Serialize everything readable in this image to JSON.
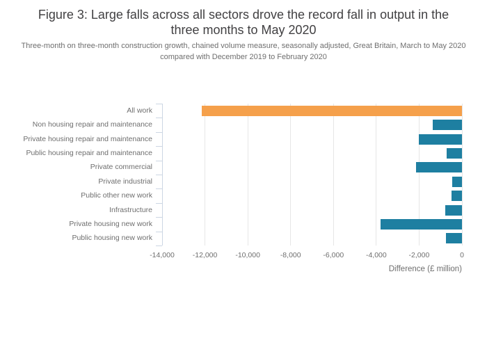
{
  "figure": {
    "title": "Figure 3: Large falls across all sectors drove the record fall in output in the three months to May 2020",
    "subtitle": "Three-month on three-month construction growth, chained volume measure, seasonally adjusted, Great Britain, March to May 2020 compared with December 2019 to February 2020"
  },
  "chart_data": {
    "type": "bar",
    "orientation": "horizontal",
    "title": "Figure 3: Large falls across all sectors drove the record fall in output in the three months to May 2020",
    "subtitle": "Three-month on three-month construction growth, chained volume measure, seasonally adjusted, Great Britain, March to May 2020 compared with December 2019 to February 2020",
    "categories": [
      "All work",
      "Non housing repair and maintenance",
      "Private housing repair and maintenance",
      "Public housing repair and maintenance",
      "Private commercial",
      "Private industrial",
      "Public other new work",
      "Infrastructure",
      "Private housing new work",
      "Public housing new work"
    ],
    "values": [
      -12150,
      -1360,
      -2010,
      -710,
      -2140,
      -450,
      -480,
      -770,
      -3800,
      -760
    ],
    "xlabel": "Difference (£ million)",
    "ylabel": "",
    "xlim": [
      -14000,
      0
    ],
    "x_tick_values": [
      -14000,
      -12000,
      -10000,
      -8000,
      -6000,
      -4000,
      -2000,
      0
    ],
    "x_tick_labels": [
      "-14,000",
      "-12,000",
      "-10,000",
      "-8,000",
      "-6,000",
      "-4,000",
      "-2,000",
      "0"
    ],
    "grid": true,
    "legend": false,
    "bar_color": "#1e7fa1",
    "highlight_color": "#f5a04b",
    "highlight_index": 0,
    "axis_line_color": "#ccd6e3",
    "gridline_color": "#e6e6e6"
  }
}
